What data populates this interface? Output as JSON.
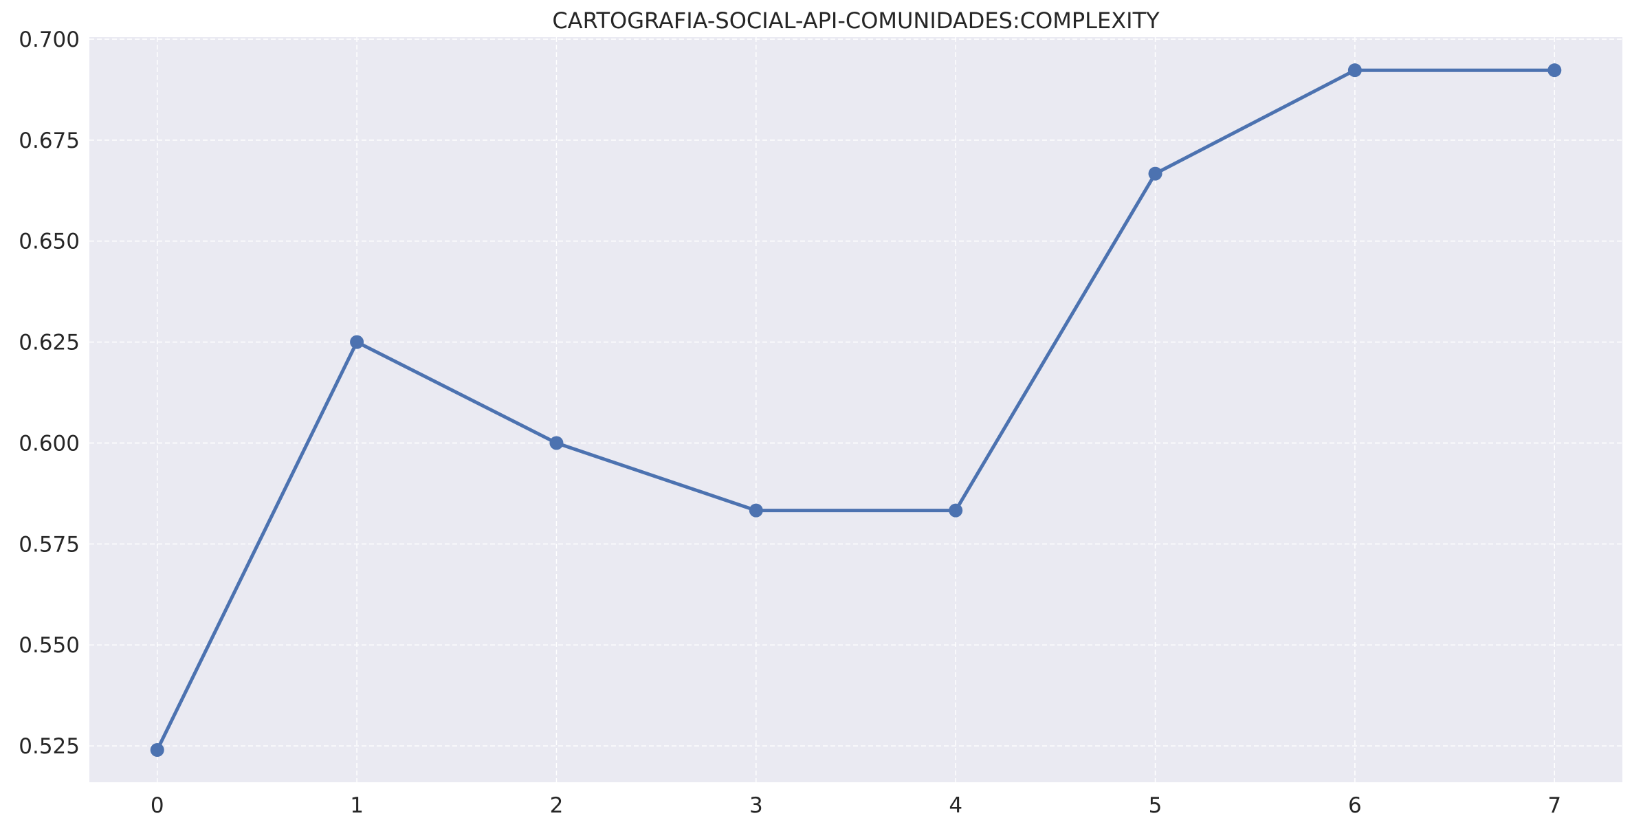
{
  "chart_data": {
    "type": "line",
    "title": "CARTOGRAFIA-SOCIAL-API-COMUNIDADES:COMPLEXITY",
    "xlabel": "",
    "ylabel": "",
    "x": [
      0,
      1,
      2,
      3,
      4,
      5,
      6,
      7
    ],
    "series": [
      {
        "values": [
          0.524,
          0.625,
          0.6,
          0.5833,
          0.5833,
          0.6667,
          0.6923,
          0.6923
        ]
      }
    ],
    "xticks": [
      "0",
      "1",
      "2",
      "3",
      "4",
      "5",
      "6",
      "7"
    ],
    "yticks": [
      "0.525",
      "0.550",
      "0.575",
      "0.600",
      "0.625",
      "0.650",
      "0.675",
      "0.700"
    ],
    "xlim": [
      -0.34,
      7.34
    ],
    "ylim": [
      0.516,
      0.7005
    ],
    "grid": true,
    "legend": "none",
    "colors": {
      "line": "#4c72b0",
      "plot_background": "#eaeaf2",
      "grid": "#ffffff",
      "text": "#262626"
    }
  }
}
